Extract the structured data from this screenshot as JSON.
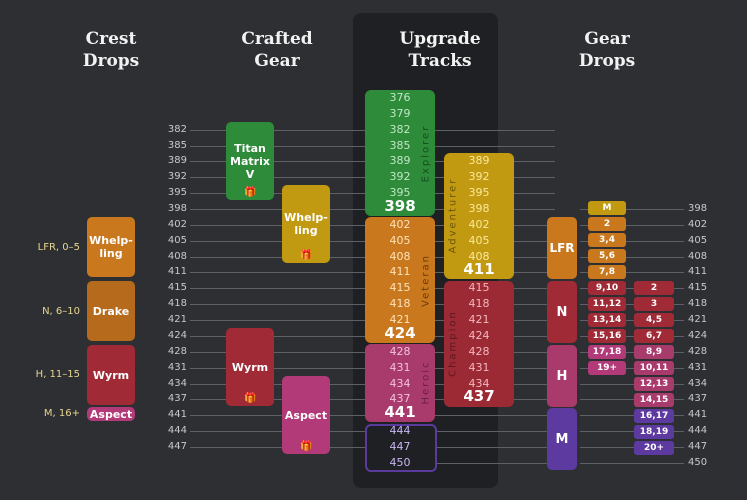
{
  "headers": {
    "crest_drops": "Crest\nDrops",
    "crafted_gear": "Crafted\nGear",
    "upgrade_tracks": "Upgrade\nTracks",
    "gear_drops": "Gear\nDrops"
  },
  "ilvls_left": [
    "382",
    "385",
    "389",
    "392",
    "395",
    "398",
    "402",
    "405",
    "408",
    "411",
    "415",
    "418",
    "421",
    "424",
    "428",
    "431",
    "434",
    "437",
    "441",
    "444",
    "447"
  ],
  "ilvls_right": [
    "398",
    "402",
    "405",
    "408",
    "411",
    "415",
    "418",
    "421",
    "424",
    "428",
    "431",
    "434",
    "437",
    "441",
    "444",
    "447",
    "450"
  ],
  "crests": [
    {
      "name": "Whelp-\nling",
      "range": "LFR, 0–5"
    },
    {
      "name": "Drake",
      "range": "N, 6–10"
    },
    {
      "name": "Wyrm",
      "range": "H, 11–15"
    },
    {
      "name": "Aspect",
      "range": "M, 16+"
    }
  ],
  "crafted": [
    {
      "name": "Titan\nMatrix\nV"
    },
    {
      "name": "Whelp-\nling"
    },
    {
      "name": "Wyrm"
    },
    {
      "name": "Aspect"
    }
  ],
  "tracks": {
    "explorer": {
      "name": "Explorer",
      "values": [
        "376",
        "379",
        "382",
        "385",
        "389",
        "392",
        "395",
        "398"
      ]
    },
    "veteran": {
      "name": "Veteran",
      "values": [
        "402",
        "405",
        "408",
        "411",
        "415",
        "418",
        "421",
        "424"
      ]
    },
    "heroic": {
      "name": "Heroic",
      "values": [
        "428",
        "431",
        "434",
        "437",
        "441"
      ]
    },
    "myth": {
      "name": "",
      "values": [
        "444",
        "447",
        "450"
      ]
    },
    "adventurer": {
      "name": "Adventurer",
      "values": [
        "389",
        "392",
        "395",
        "398",
        "402",
        "405",
        "408",
        "411"
      ]
    },
    "champion": {
      "name": "Champion",
      "values": [
        "415",
        "418",
        "421",
        "424",
        "428",
        "431",
        "434",
        "437"
      ]
    }
  },
  "gear_drops": {
    "difficulties": [
      "LFR",
      "N",
      "H",
      "M"
    ],
    "col1": [
      "M",
      "2",
      "3,4",
      "5,6",
      "7,8",
      "9,10",
      "11,12",
      "13,14",
      "15,16",
      "17,18",
      "19+"
    ],
    "col2": [
      "2",
      "3",
      "4,5",
      "6,7",
      "8,9",
      "10,11",
      "12,13",
      "14,15",
      "16,17",
      "18,19",
      "20+"
    ]
  },
  "colors": {
    "explorer": "#2e8b3a",
    "veteran": "#c9781e",
    "adventurer": "#c29a12",
    "champion": "#9c2a35",
    "heroic": "#a93a6c",
    "myth": "#5b3a9e",
    "green": "#2f8a3a",
    "orange": "#b56a1c",
    "red": "#a02a35",
    "pink": "#b33a78",
    "purple": "#5c3aa0"
  }
}
